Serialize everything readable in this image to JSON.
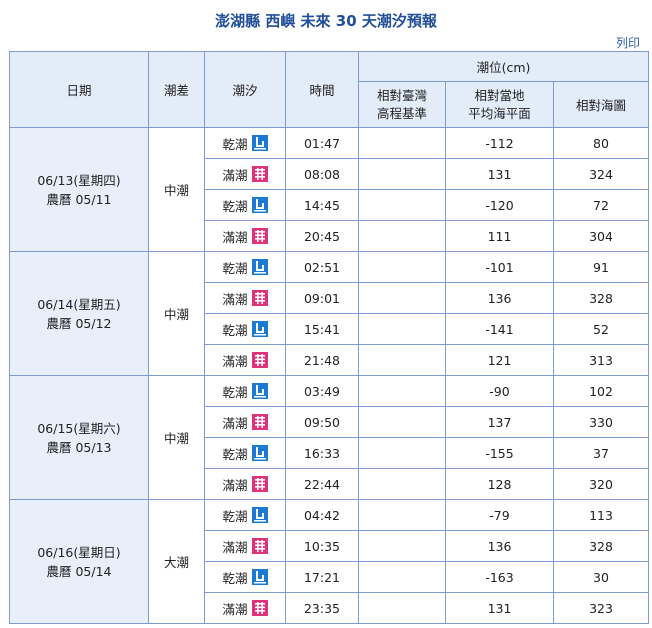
{
  "title": "澎湖縣 西嶼 未來 30 天潮汐預報",
  "print_label": "列印",
  "headers": {
    "date": "日期",
    "range": "潮差",
    "tide": "潮汐",
    "time": "時間",
    "level": "潮位(cm)",
    "twvd_line1": "相對臺灣",
    "twvd_line2": "高程基準",
    "msl_line1": "相對當地",
    "msl_line2": "平均海平面",
    "chart": "相對海圖"
  },
  "icon_colors": {
    "low": "#1a7ad6",
    "high": "#e0317a"
  },
  "days": [
    {
      "date": "06/13(星期四)",
      "lunar": "農曆 05/11",
      "range": "中潮",
      "tides": [
        {
          "type": "乾潮",
          "kind": "low",
          "time": "01:47",
          "twvd": "",
          "msl": "-112",
          "chart": "80"
        },
        {
          "type": "滿潮",
          "kind": "high",
          "time": "08:08",
          "twvd": "",
          "msl": "131",
          "chart": "324"
        },
        {
          "type": "乾潮",
          "kind": "low",
          "time": "14:45",
          "twvd": "",
          "msl": "-120",
          "chart": "72"
        },
        {
          "type": "滿潮",
          "kind": "high",
          "time": "20:45",
          "twvd": "",
          "msl": "111",
          "chart": "304"
        }
      ]
    },
    {
      "date": "06/14(星期五)",
      "lunar": "農曆 05/12",
      "range": "中潮",
      "tides": [
        {
          "type": "乾潮",
          "kind": "low",
          "time": "02:51",
          "twvd": "",
          "msl": "-101",
          "chart": "91"
        },
        {
          "type": "滿潮",
          "kind": "high",
          "time": "09:01",
          "twvd": "",
          "msl": "136",
          "chart": "328"
        },
        {
          "type": "乾潮",
          "kind": "low",
          "time": "15:41",
          "twvd": "",
          "msl": "-141",
          "chart": "52"
        },
        {
          "type": "滿潮",
          "kind": "high",
          "time": "21:48",
          "twvd": "",
          "msl": "121",
          "chart": "313"
        }
      ]
    },
    {
      "date": "06/15(星期六)",
      "lunar": "農曆 05/13",
      "range": "中潮",
      "tides": [
        {
          "type": "乾潮",
          "kind": "low",
          "time": "03:49",
          "twvd": "",
          "msl": "-90",
          "chart": "102"
        },
        {
          "type": "滿潮",
          "kind": "high",
          "time": "09:50",
          "twvd": "",
          "msl": "137",
          "chart": "330"
        },
        {
          "type": "乾潮",
          "kind": "low",
          "time": "16:33",
          "twvd": "",
          "msl": "-155",
          "chart": "37"
        },
        {
          "type": "滿潮",
          "kind": "high",
          "time": "22:44",
          "twvd": "",
          "msl": "128",
          "chart": "320"
        }
      ]
    },
    {
      "date": "06/16(星期日)",
      "lunar": "農曆 05/14",
      "range": "大潮",
      "tides": [
        {
          "type": "乾潮",
          "kind": "low",
          "time": "04:42",
          "twvd": "",
          "msl": "-79",
          "chart": "113"
        },
        {
          "type": "滿潮",
          "kind": "high",
          "time": "10:35",
          "twvd": "",
          "msl": "136",
          "chart": "328"
        },
        {
          "type": "乾潮",
          "kind": "low",
          "time": "17:21",
          "twvd": "",
          "msl": "-163",
          "chart": "30"
        },
        {
          "type": "滿潮",
          "kind": "high",
          "time": "23:35",
          "twvd": "",
          "msl": "131",
          "chart": "323"
        }
      ]
    }
  ]
}
